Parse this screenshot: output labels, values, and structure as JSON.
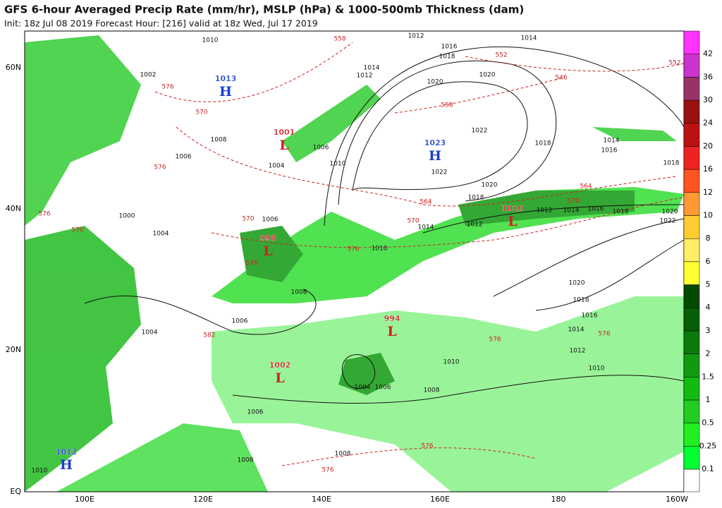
{
  "header": {
    "title": "GFS 6-hour Averaged Precip Rate (mm/hr), MSLP (hPa) & 1000-500mb Thickness (dam)",
    "subtitle": "Init: 18z Jul 08 2019   Forecast Hour: [216]   valid at 18z Wed, Jul 17 2019"
  },
  "map": {
    "lat_labels": [
      "60N",
      "40N",
      "20N",
      "EQ"
    ],
    "lon_labels": [
      "100E",
      "120E",
      "140E",
      "160E",
      "180",
      "160W"
    ],
    "centers": [
      {
        "type": "H",
        "value": "1013"
      },
      {
        "type": "L",
        "value": "1001"
      },
      {
        "type": "H",
        "value": "1023"
      },
      {
        "type": "L",
        "value": "1010"
      },
      {
        "type": "L",
        "value": "998"
      },
      {
        "type": "L",
        "value": "994"
      },
      {
        "type": "L",
        "value": "1002"
      },
      {
        "type": "H",
        "value": "1012"
      }
    ],
    "isobar_labels": [
      "1010",
      "1012",
      "1014",
      "1016",
      "1018",
      "1020",
      "1020",
      "1022",
      "1022",
      "1018",
      "1014",
      "1016",
      "1018",
      "1020",
      "1018",
      "1014",
      "1012",
      "1010",
      "1008",
      "1006",
      "1004",
      "1006",
      "1004",
      "1000",
      "1002",
      "1006",
      "1008",
      "1004",
      "1020",
      "1018",
      "1016",
      "1014",
      "1012",
      "1010",
      "1010",
      "1008",
      "1006",
      "1006",
      "1008",
      "1008",
      "1010",
      "1014",
      "1012",
      "1006",
      "1010",
      "1016",
      "1014",
      "1012",
      "1018",
      "1020",
      "1022",
      "1004"
    ],
    "thickness_labels": [
      "558",
      "552",
      "546",
      "552",
      "558",
      "564",
      "570",
      "576",
      "570",
      "576",
      "576",
      "576",
      "570",
      "564",
      "570",
      "576",
      "576",
      "576",
      "576",
      "582",
      "570",
      "576"
    ]
  },
  "colorbar": {
    "labels": [
      "0.1",
      "0.25",
      "0.5",
      "1",
      "1.5",
      "2",
      "3",
      "4",
      "5",
      "6",
      "8",
      "10",
      "12",
      "16",
      "20",
      "24",
      "30",
      "36",
      "42"
    ],
    "colors": [
      "#00ff33",
      "#22ee22",
      "#22cc22",
      "#11bb11",
      "#119911",
      "#0a7a0a",
      "#065e06",
      "#034a03",
      "#ffff33",
      "#ffee66",
      "#ffcc33",
      "#ff9933",
      "#ff5522",
      "#ee2222",
      "#bb1111",
      "#991111",
      "#993366",
      "#cc33cc",
      "#ff33ff"
    ]
  }
}
